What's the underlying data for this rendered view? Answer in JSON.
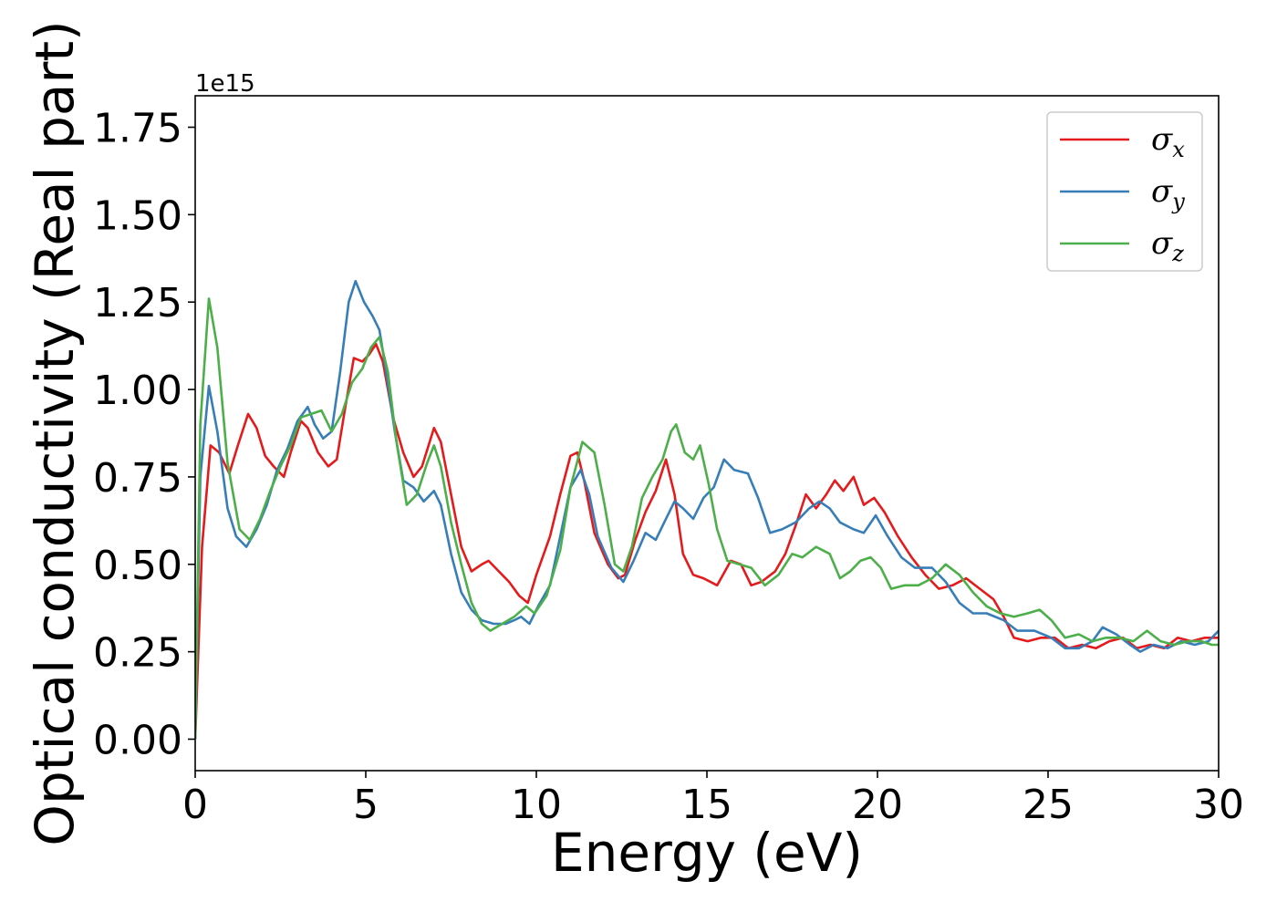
{
  "chart_data": {
    "type": "line",
    "title": "",
    "xlabel": "Energy (eV)",
    "ylabel": "Optical conductivity (Real part)",
    "y_offset_label": "1e15",
    "xlim": [
      0,
      30
    ],
    "ylim": [
      -0.09,
      1.84
    ],
    "xticks": [
      0,
      5,
      10,
      15,
      20,
      25,
      30
    ],
    "yticks": [
      0.0,
      0.25,
      0.5,
      0.75,
      1.0,
      1.25,
      1.5,
      1.75
    ],
    "xtick_labels": [
      "0",
      "5",
      "10",
      "15",
      "20",
      "25",
      "30"
    ],
    "ytick_labels": [
      "0.00",
      "0.25",
      "0.50",
      "0.75",
      "1.00",
      "1.25",
      "1.50",
      "1.75"
    ],
    "grid": false,
    "legend_position": "top-right",
    "series": [
      {
        "name": "σ",
        "subscript": "x",
        "color": "#e41a1c",
        "points": [
          [
            0,
            0
          ],
          [
            0.2,
            0.55
          ],
          [
            0.45,
            0.84
          ],
          [
            0.7,
            0.82
          ],
          [
            1.0,
            0.76
          ],
          [
            1.25,
            0.84
          ],
          [
            1.55,
            0.93
          ],
          [
            1.8,
            0.89
          ],
          [
            2.05,
            0.81
          ],
          [
            2.3,
            0.78
          ],
          [
            2.6,
            0.75
          ],
          [
            2.8,
            0.82
          ],
          [
            3.1,
            0.91
          ],
          [
            3.3,
            0.89
          ],
          [
            3.6,
            0.82
          ],
          [
            3.9,
            0.78
          ],
          [
            4.15,
            0.8
          ],
          [
            4.4,
            0.95
          ],
          [
            4.65,
            1.09
          ],
          [
            4.9,
            1.08
          ],
          [
            5.1,
            1.1
          ],
          [
            5.3,
            1.13
          ],
          [
            5.5,
            1.08
          ],
          [
            5.8,
            0.92
          ],
          [
            6.1,
            0.82
          ],
          [
            6.4,
            0.75
          ],
          [
            6.65,
            0.78
          ],
          [
            7.0,
            0.89
          ],
          [
            7.2,
            0.85
          ],
          [
            7.5,
            0.7
          ],
          [
            7.8,
            0.55
          ],
          [
            8.1,
            0.48
          ],
          [
            8.4,
            0.5
          ],
          [
            8.6,
            0.51
          ],
          [
            8.9,
            0.48
          ],
          [
            9.2,
            0.45
          ],
          [
            9.5,
            0.41
          ],
          [
            9.75,
            0.39
          ],
          [
            10.0,
            0.47
          ],
          [
            10.4,
            0.58
          ],
          [
            10.7,
            0.7
          ],
          [
            11.0,
            0.81
          ],
          [
            11.2,
            0.82
          ],
          [
            11.4,
            0.74
          ],
          [
            11.7,
            0.59
          ],
          [
            12.1,
            0.5
          ],
          [
            12.4,
            0.46
          ],
          [
            12.6,
            0.47
          ],
          [
            12.9,
            0.57
          ],
          [
            13.2,
            0.65
          ],
          [
            13.5,
            0.71
          ],
          [
            13.8,
            0.8
          ],
          [
            14.05,
            0.7
          ],
          [
            14.3,
            0.53
          ],
          [
            14.6,
            0.47
          ],
          [
            14.9,
            0.46
          ],
          [
            15.3,
            0.44
          ],
          [
            15.7,
            0.51
          ],
          [
            16.0,
            0.5
          ],
          [
            16.3,
            0.44
          ],
          [
            16.6,
            0.45
          ],
          [
            17.0,
            0.48
          ],
          [
            17.3,
            0.53
          ],
          [
            17.6,
            0.61
          ],
          [
            17.9,
            0.7
          ],
          [
            18.2,
            0.66
          ],
          [
            18.5,
            0.7
          ],
          [
            18.75,
            0.74
          ],
          [
            19.0,
            0.71
          ],
          [
            19.3,
            0.75
          ],
          [
            19.6,
            0.67
          ],
          [
            19.9,
            0.69
          ],
          [
            20.2,
            0.65
          ],
          [
            20.6,
            0.58
          ],
          [
            21.0,
            0.52
          ],
          [
            21.4,
            0.47
          ],
          [
            21.8,
            0.43
          ],
          [
            22.2,
            0.44
          ],
          [
            22.6,
            0.46
          ],
          [
            23.0,
            0.43
          ],
          [
            23.4,
            0.4
          ],
          [
            23.7,
            0.35
          ],
          [
            24.0,
            0.29
          ],
          [
            24.4,
            0.28
          ],
          [
            24.8,
            0.29
          ],
          [
            25.2,
            0.29
          ],
          [
            25.6,
            0.26
          ],
          [
            26.0,
            0.27
          ],
          [
            26.4,
            0.26
          ],
          [
            26.8,
            0.28
          ],
          [
            27.2,
            0.29
          ],
          [
            27.6,
            0.26
          ],
          [
            28.0,
            0.27
          ],
          [
            28.4,
            0.26
          ],
          [
            28.8,
            0.29
          ],
          [
            29.2,
            0.28
          ],
          [
            29.6,
            0.29
          ],
          [
            30.0,
            0.29
          ]
        ]
      },
      {
        "name": "σ",
        "subscript": "y",
        "color": "#377eb8",
        "points": [
          [
            0,
            0
          ],
          [
            0.15,
            0.75
          ],
          [
            0.4,
            1.01
          ],
          [
            0.65,
            0.88
          ],
          [
            0.95,
            0.66
          ],
          [
            1.2,
            0.58
          ],
          [
            1.5,
            0.55
          ],
          [
            1.8,
            0.6
          ],
          [
            2.1,
            0.67
          ],
          [
            2.4,
            0.77
          ],
          [
            2.7,
            0.83
          ],
          [
            3.0,
            0.91
          ],
          [
            3.3,
            0.95
          ],
          [
            3.5,
            0.9
          ],
          [
            3.75,
            0.86
          ],
          [
            4.0,
            0.88
          ],
          [
            4.25,
            1.05
          ],
          [
            4.5,
            1.25
          ],
          [
            4.7,
            1.31
          ],
          [
            4.95,
            1.25
          ],
          [
            5.2,
            1.21
          ],
          [
            5.4,
            1.17
          ],
          [
            5.6,
            1.05
          ],
          [
            5.85,
            0.88
          ],
          [
            6.1,
            0.74
          ],
          [
            6.4,
            0.72
          ],
          [
            6.7,
            0.68
          ],
          [
            7.0,
            0.71
          ],
          [
            7.2,
            0.67
          ],
          [
            7.5,
            0.53
          ],
          [
            7.8,
            0.42
          ],
          [
            8.1,
            0.37
          ],
          [
            8.4,
            0.34
          ],
          [
            8.75,
            0.33
          ],
          [
            9.1,
            0.33
          ],
          [
            9.35,
            0.34
          ],
          [
            9.55,
            0.35
          ],
          [
            9.8,
            0.33
          ],
          [
            10.05,
            0.38
          ],
          [
            10.4,
            0.44
          ],
          [
            10.7,
            0.58
          ],
          [
            11.0,
            0.72
          ],
          [
            11.3,
            0.77
          ],
          [
            11.55,
            0.7
          ],
          [
            11.8,
            0.58
          ],
          [
            12.2,
            0.49
          ],
          [
            12.55,
            0.45
          ],
          [
            12.85,
            0.51
          ],
          [
            13.2,
            0.59
          ],
          [
            13.5,
            0.57
          ],
          [
            13.8,
            0.63
          ],
          [
            14.05,
            0.68
          ],
          [
            14.3,
            0.66
          ],
          [
            14.6,
            0.63
          ],
          [
            14.9,
            0.69
          ],
          [
            15.2,
            0.72
          ],
          [
            15.5,
            0.8
          ],
          [
            15.8,
            0.77
          ],
          [
            16.2,
            0.76
          ],
          [
            16.5,
            0.69
          ],
          [
            16.85,
            0.59
          ],
          [
            17.2,
            0.6
          ],
          [
            17.6,
            0.62
          ],
          [
            18.0,
            0.66
          ],
          [
            18.3,
            0.68
          ],
          [
            18.6,
            0.66
          ],
          [
            18.9,
            0.62
          ],
          [
            19.3,
            0.6
          ],
          [
            19.6,
            0.59
          ],
          [
            19.95,
            0.64
          ],
          [
            20.3,
            0.58
          ],
          [
            20.7,
            0.52
          ],
          [
            21.1,
            0.49
          ],
          [
            21.6,
            0.49
          ],
          [
            22.0,
            0.45
          ],
          [
            22.4,
            0.39
          ],
          [
            22.8,
            0.36
          ],
          [
            23.2,
            0.36
          ],
          [
            23.7,
            0.34
          ],
          [
            24.1,
            0.31
          ],
          [
            24.6,
            0.31
          ],
          [
            25.1,
            0.29
          ],
          [
            25.5,
            0.26
          ],
          [
            25.9,
            0.26
          ],
          [
            26.3,
            0.28
          ],
          [
            26.6,
            0.32
          ],
          [
            27.0,
            0.3
          ],
          [
            27.4,
            0.27
          ],
          [
            27.7,
            0.25
          ],
          [
            28.1,
            0.27
          ],
          [
            28.5,
            0.26
          ],
          [
            28.9,
            0.28
          ],
          [
            29.3,
            0.27
          ],
          [
            29.7,
            0.28
          ],
          [
            30.0,
            0.31
          ]
        ]
      },
      {
        "name": "σ",
        "subscript": "z",
        "color": "#4daf4a",
        "points": [
          [
            0,
            0
          ],
          [
            0.15,
            0.9
          ],
          [
            0.4,
            1.26
          ],
          [
            0.65,
            1.12
          ],
          [
            0.95,
            0.79
          ],
          [
            1.3,
            0.6
          ],
          [
            1.6,
            0.57
          ],
          [
            1.9,
            0.63
          ],
          [
            2.2,
            0.71
          ],
          [
            2.5,
            0.78
          ],
          [
            2.8,
            0.84
          ],
          [
            3.1,
            0.92
          ],
          [
            3.4,
            0.93
          ],
          [
            3.7,
            0.94
          ],
          [
            4.0,
            0.88
          ],
          [
            4.3,
            0.93
          ],
          [
            4.6,
            1.02
          ],
          [
            4.9,
            1.06
          ],
          [
            5.15,
            1.12
          ],
          [
            5.4,
            1.15
          ],
          [
            5.65,
            1.05
          ],
          [
            5.9,
            0.85
          ],
          [
            6.2,
            0.67
          ],
          [
            6.5,
            0.7
          ],
          [
            6.8,
            0.79
          ],
          [
            7.0,
            0.84
          ],
          [
            7.2,
            0.78
          ],
          [
            7.5,
            0.62
          ],
          [
            7.8,
            0.5
          ],
          [
            8.1,
            0.39
          ],
          [
            8.4,
            0.33
          ],
          [
            8.65,
            0.31
          ],
          [
            9.0,
            0.33
          ],
          [
            9.35,
            0.35
          ],
          [
            9.7,
            0.38
          ],
          [
            9.95,
            0.36
          ],
          [
            10.3,
            0.41
          ],
          [
            10.7,
            0.54
          ],
          [
            11.0,
            0.72
          ],
          [
            11.35,
            0.85
          ],
          [
            11.7,
            0.82
          ],
          [
            12.0,
            0.67
          ],
          [
            12.3,
            0.5
          ],
          [
            12.55,
            0.48
          ],
          [
            12.8,
            0.55
          ],
          [
            13.1,
            0.69
          ],
          [
            13.4,
            0.75
          ],
          [
            13.7,
            0.8
          ],
          [
            13.95,
            0.88
          ],
          [
            14.1,
            0.9
          ],
          [
            14.35,
            0.82
          ],
          [
            14.6,
            0.8
          ],
          [
            14.8,
            0.84
          ],
          [
            15.05,
            0.73
          ],
          [
            15.3,
            0.6
          ],
          [
            15.6,
            0.51
          ],
          [
            15.95,
            0.5
          ],
          [
            16.3,
            0.49
          ],
          [
            16.7,
            0.44
          ],
          [
            17.1,
            0.47
          ],
          [
            17.5,
            0.53
          ],
          [
            17.8,
            0.52
          ],
          [
            18.2,
            0.55
          ],
          [
            18.6,
            0.53
          ],
          [
            18.9,
            0.46
          ],
          [
            19.2,
            0.48
          ],
          [
            19.5,
            0.51
          ],
          [
            19.8,
            0.52
          ],
          [
            20.1,
            0.49
          ],
          [
            20.4,
            0.43
          ],
          [
            20.8,
            0.44
          ],
          [
            21.2,
            0.44
          ],
          [
            21.6,
            0.46
          ],
          [
            22.0,
            0.5
          ],
          [
            22.4,
            0.47
          ],
          [
            22.8,
            0.42
          ],
          [
            23.2,
            0.38
          ],
          [
            23.6,
            0.36
          ],
          [
            24.0,
            0.35
          ],
          [
            24.4,
            0.36
          ],
          [
            24.75,
            0.37
          ],
          [
            25.1,
            0.34
          ],
          [
            25.5,
            0.29
          ],
          [
            25.9,
            0.3
          ],
          [
            26.3,
            0.28
          ],
          [
            26.7,
            0.29
          ],
          [
            27.1,
            0.29
          ],
          [
            27.5,
            0.28
          ],
          [
            27.9,
            0.31
          ],
          [
            28.3,
            0.28
          ],
          [
            28.7,
            0.27
          ],
          [
            29.1,
            0.28
          ],
          [
            29.5,
            0.28
          ],
          [
            29.8,
            0.27
          ],
          [
            30.0,
            0.27
          ]
        ]
      }
    ]
  }
}
